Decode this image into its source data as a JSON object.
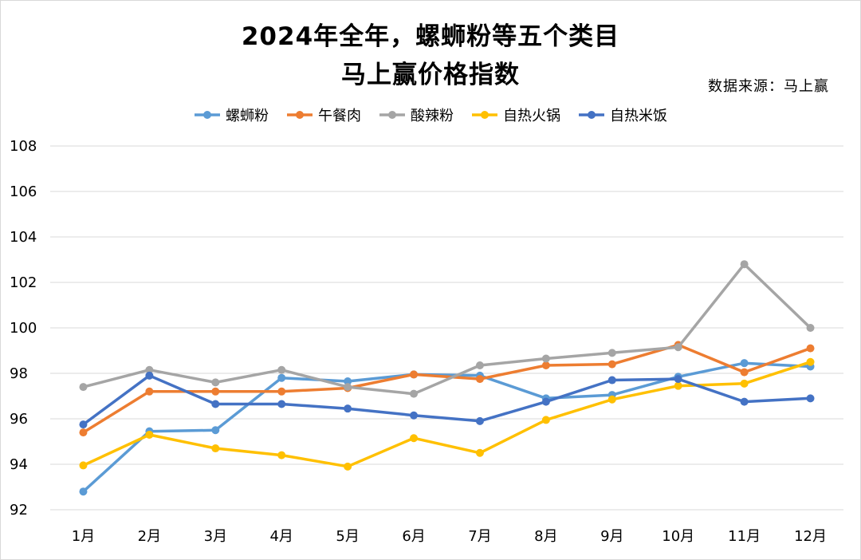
{
  "title_line1": "2024年全年，螺蛳粉等五个类目",
  "title_line2": "马上赢价格指数",
  "source": "数据来源：马上赢",
  "chart_data": {
    "type": "line",
    "categories": [
      "1月",
      "2月",
      "3月",
      "4月",
      "5月",
      "6月",
      "7月",
      "8月",
      "9月",
      "10月",
      "11月",
      "12月"
    ],
    "y_ticks": [
      "92",
      "94",
      "96",
      "98",
      "100",
      "102",
      "104",
      "106",
      "108"
    ],
    "ylim": [
      92,
      108
    ],
    "grid": true,
    "legend_position": "top-center",
    "series": [
      {
        "name": "螺蛳粉",
        "color": "#5b9bd5",
        "values": [
          92.8,
          95.45,
          95.5,
          97.8,
          97.65,
          97.95,
          97.9,
          96.9,
          97.05,
          97.85,
          98.45,
          98.3
        ]
      },
      {
        "name": "午餐肉",
        "color": "#ed7d31",
        "values": [
          95.4,
          97.2,
          97.2,
          97.2,
          97.35,
          97.95,
          97.75,
          98.35,
          98.4,
          99.25,
          98.05,
          99.1
        ]
      },
      {
        "name": "酸辣粉",
        "color": "#a5a5a5",
        "values": [
          97.4,
          98.15,
          97.6,
          98.15,
          97.4,
          97.1,
          98.35,
          98.65,
          98.9,
          99.15,
          102.8,
          100.0
        ]
      },
      {
        "name": "自热火锅",
        "color": "#ffc000",
        "values": [
          93.95,
          95.3,
          94.7,
          94.4,
          93.9,
          95.15,
          94.5,
          95.95,
          96.85,
          97.45,
          97.55,
          98.5
        ]
      },
      {
        "name": "自热米饭",
        "color": "#4472c4",
        "values": [
          95.75,
          97.9,
          96.65,
          96.65,
          96.45,
          96.15,
          95.9,
          96.75,
          97.7,
          97.75,
          96.75,
          96.9
        ]
      }
    ]
  }
}
